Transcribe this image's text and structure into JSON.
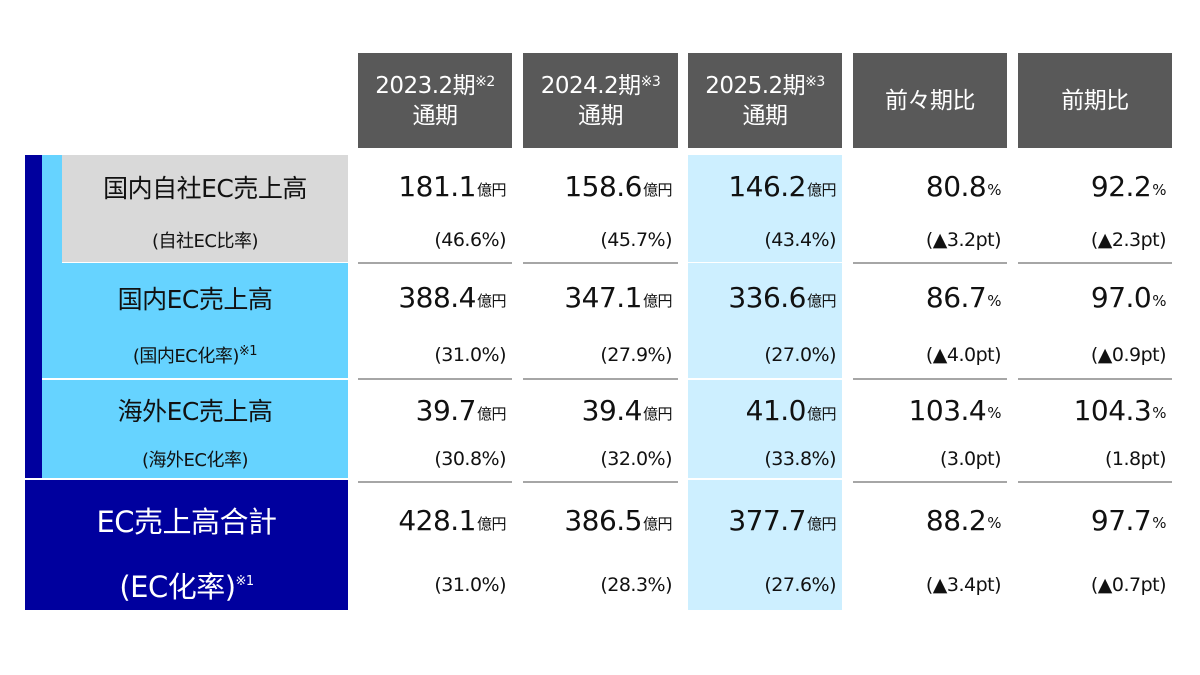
{
  "headers": [
    {
      "line1": "2023.2期",
      "note": "※2",
      "line2": "通期"
    },
    {
      "line1": "2024.2期",
      "note": "※3",
      "line2": "通期"
    },
    {
      "line1": "2025.2期",
      "note": "※3",
      "line2": "通期"
    },
    {
      "line1": "前々期比",
      "note": "",
      "line2": ""
    },
    {
      "line1": "前期比",
      "note": "",
      "line2": ""
    }
  ],
  "rows": [
    {
      "label": "国内自社EC売上高",
      "sub_label": "(自社EC比率)",
      "sub_note": "",
      "cells": [
        {
          "main": "181.1",
          "unit": "億円",
          "sub": "(46.6%)"
        },
        {
          "main": "158.6",
          "unit": "億円",
          "sub": "(45.7%)"
        },
        {
          "main": "146.2",
          "unit": "億円",
          "sub": "(43.4%)"
        },
        {
          "main": "80.8",
          "unit": "%",
          "sub": "(▲3.2pt)"
        },
        {
          "main": "92.2",
          "unit": "%",
          "sub": "(▲2.3pt)"
        }
      ]
    },
    {
      "label": "国内EC売上高",
      "sub_label": "(国内EC化率)",
      "sub_note": "※1",
      "cells": [
        {
          "main": "388.4",
          "unit": "億円",
          "sub": "(31.0%)"
        },
        {
          "main": "347.1",
          "unit": "億円",
          "sub": "(27.9%)"
        },
        {
          "main": "336.6",
          "unit": "億円",
          "sub": "(27.0%)"
        },
        {
          "main": "86.7",
          "unit": "%",
          "sub": "(▲4.0pt)"
        },
        {
          "main": "97.0",
          "unit": "%",
          "sub": "(▲0.9pt)"
        }
      ]
    },
    {
      "label": "海外EC売上高",
      "sub_label": "(海外EC化率)",
      "sub_note": "",
      "cells": [
        {
          "main": "39.7",
          "unit": "億円",
          "sub": "(30.8%)"
        },
        {
          "main": "39.4",
          "unit": "億円",
          "sub": "(32.0%)"
        },
        {
          "main": "41.0",
          "unit": "億円",
          "sub": "(33.8%)"
        },
        {
          "main": "103.4",
          "unit": "%",
          "sub": "(3.0pt)"
        },
        {
          "main": "104.3",
          "unit": "%",
          "sub": "(1.8pt)"
        }
      ]
    },
    {
      "label": "EC売上高合計",
      "sub_label": "(EC化率)",
      "sub_note": "※1",
      "cells": [
        {
          "main": "428.1",
          "unit": "億円",
          "sub": "(31.0%)"
        },
        {
          "main": "386.5",
          "unit": "億円",
          "sub": "(28.3%)"
        },
        {
          "main": "377.7",
          "unit": "億円",
          "sub": "(27.6%)"
        },
        {
          "main": "88.2",
          "unit": "%",
          "sub": "(▲3.4pt)"
        },
        {
          "main": "97.7",
          "unit": "%",
          "sub": "(▲0.7pt)"
        }
      ]
    }
  ],
  "colors": {
    "header": "#595959",
    "dark_blue": "#00009e",
    "light_blue": "#66d3ff",
    "gray": "#d9d9d9",
    "highlight": "#cdefff"
  }
}
